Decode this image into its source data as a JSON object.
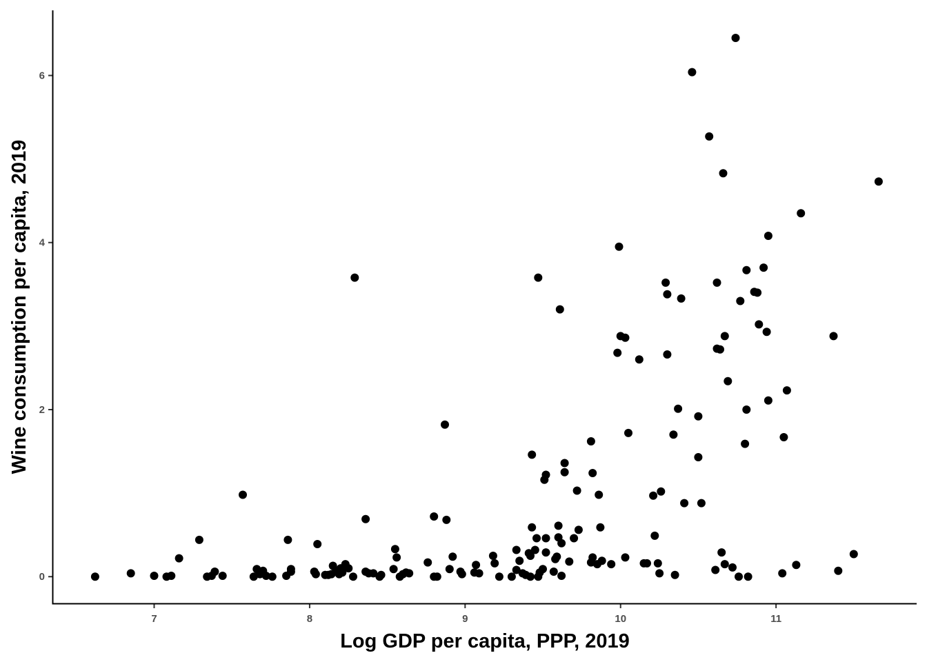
{
  "chart_data": {
    "type": "scatter",
    "title": "",
    "xlabel": "Log GDP per capita, PPP, 2019",
    "ylabel": "Wine consumption per capita, 2019",
    "xlim": [
      6.35,
      11.9
    ],
    "ylim": [
      -0.32,
      6.78
    ],
    "xticks": [
      7,
      8,
      9,
      10,
      11
    ],
    "yticks": [
      0,
      2,
      4,
      6
    ],
    "xtick_labels": [
      "7",
      "8",
      "9",
      "10",
      "11"
    ],
    "ytick_labels": [
      "0",
      "2",
      "4",
      "6"
    ],
    "grid": false,
    "legend": "none",
    "point_color": "#000000",
    "points": [
      [
        6.62,
        0.0
      ],
      [
        6.85,
        0.04
      ],
      [
        7.0,
        0.01
      ],
      [
        7.08,
        0.0
      ],
      [
        7.11,
        0.01
      ],
      [
        7.16,
        0.22
      ],
      [
        7.29,
        0.44
      ],
      [
        7.34,
        0.0
      ],
      [
        7.37,
        0.01
      ],
      [
        7.39,
        0.06
      ],
      [
        7.44,
        0.01
      ],
      [
        7.57,
        0.98
      ],
      [
        7.64,
        0.0
      ],
      [
        7.66,
        0.09
      ],
      [
        7.68,
        0.03
      ],
      [
        7.7,
        0.07
      ],
      [
        7.72,
        0.01
      ],
      [
        7.76,
        0.0
      ],
      [
        7.85,
        0.01
      ],
      [
        7.86,
        0.44
      ],
      [
        7.88,
        0.06
      ],
      [
        7.88,
        0.09
      ],
      [
        8.03,
        0.06
      ],
      [
        8.04,
        0.03
      ],
      [
        8.05,
        0.39
      ],
      [
        8.1,
        0.02
      ],
      [
        8.12,
        0.02
      ],
      [
        8.14,
        0.03
      ],
      [
        8.15,
        0.13
      ],
      [
        8.17,
        0.07
      ],
      [
        8.19,
        0.03
      ],
      [
        8.2,
        0.1
      ],
      [
        8.21,
        0.05
      ],
      [
        8.23,
        0.15
      ],
      [
        8.25,
        0.1
      ],
      [
        8.28,
        0.0
      ],
      [
        8.29,
        3.58
      ],
      [
        8.36,
        0.69
      ],
      [
        8.36,
        0.06
      ],
      [
        8.38,
        0.04
      ],
      [
        8.41,
        0.04
      ],
      [
        8.45,
        0.0
      ],
      [
        8.46,
        0.02
      ],
      [
        8.54,
        0.09
      ],
      [
        8.55,
        0.33
      ],
      [
        8.56,
        0.23
      ],
      [
        8.58,
        0.0
      ],
      [
        8.6,
        0.03
      ],
      [
        8.62,
        0.05
      ],
      [
        8.64,
        0.04
      ],
      [
        8.76,
        0.17
      ],
      [
        8.8,
        0.0
      ],
      [
        8.8,
        0.72
      ],
      [
        8.82,
        0.0
      ],
      [
        8.87,
        1.82
      ],
      [
        8.88,
        0.68
      ],
      [
        8.9,
        0.09
      ],
      [
        8.92,
        0.24
      ],
      [
        8.97,
        0.06
      ],
      [
        8.98,
        0.03
      ],
      [
        9.06,
        0.05
      ],
      [
        9.07,
        0.14
      ],
      [
        9.09,
        0.04
      ],
      [
        9.18,
        0.25
      ],
      [
        9.19,
        0.16
      ],
      [
        9.22,
        0.0
      ],
      [
        9.3,
        0.0
      ],
      [
        9.33,
        0.08
      ],
      [
        9.33,
        0.32
      ],
      [
        9.35,
        0.19
      ],
      [
        9.37,
        0.04
      ],
      [
        9.39,
        0.02
      ],
      [
        9.41,
        0.28
      ],
      [
        9.42,
        0.0
      ],
      [
        9.42,
        0.25
      ],
      [
        9.43,
        1.46
      ],
      [
        9.43,
        0.59
      ],
      [
        9.45,
        0.32
      ],
      [
        9.46,
        0.46
      ],
      [
        9.47,
        3.58
      ],
      [
        9.47,
        0.0
      ],
      [
        9.48,
        0.05
      ],
      [
        9.5,
        0.09
      ],
      [
        9.52,
        1.22
      ],
      [
        9.51,
        1.16
      ],
      [
        9.52,
        0.46
      ],
      [
        9.52,
        0.29
      ],
      [
        9.57,
        0.06
      ],
      [
        9.58,
        0.21
      ],
      [
        9.59,
        0.24
      ],
      [
        9.6,
        0.61
      ],
      [
        9.61,
        3.2
      ],
      [
        9.6,
        0.47
      ],
      [
        9.62,
        0.01
      ],
      [
        9.62,
        0.4
      ],
      [
        9.64,
        1.36
      ],
      [
        9.64,
        1.25
      ],
      [
        9.67,
        0.18
      ],
      [
        9.7,
        0.46
      ],
      [
        9.72,
        1.03
      ],
      [
        9.73,
        0.56
      ],
      [
        9.81,
        1.62
      ],
      [
        9.82,
        1.24
      ],
      [
        9.82,
        0.23
      ],
      [
        9.81,
        0.17
      ],
      [
        9.85,
        0.15
      ],
      [
        9.86,
        0.98
      ],
      [
        9.87,
        0.59
      ],
      [
        9.88,
        0.19
      ],
      [
        9.94,
        0.15
      ],
      [
        9.98,
        2.68
      ],
      [
        9.99,
        3.95
      ],
      [
        10.0,
        2.88
      ],
      [
        10.03,
        2.86
      ],
      [
        10.03,
        0.23
      ],
      [
        10.05,
        1.72
      ],
      [
        10.12,
        2.6
      ],
      [
        10.15,
        0.16
      ],
      [
        10.17,
        0.16
      ],
      [
        10.21,
        0.97
      ],
      [
        10.22,
        0.49
      ],
      [
        10.24,
        0.16
      ],
      [
        10.25,
        0.04
      ],
      [
        10.26,
        1.02
      ],
      [
        10.29,
        3.52
      ],
      [
        10.3,
        2.66
      ],
      [
        10.3,
        3.38
      ],
      [
        10.34,
        1.7
      ],
      [
        10.35,
        0.02
      ],
      [
        10.37,
        2.01
      ],
      [
        10.39,
        3.33
      ],
      [
        10.41,
        0.88
      ],
      [
        10.46,
        6.04
      ],
      [
        10.5,
        1.92
      ],
      [
        10.5,
        1.43
      ],
      [
        10.52,
        0.88
      ],
      [
        10.57,
        5.27
      ],
      [
        10.61,
        0.08
      ],
      [
        10.62,
        3.52
      ],
      [
        10.62,
        2.73
      ],
      [
        10.64,
        2.72
      ],
      [
        10.65,
        0.29
      ],
      [
        10.66,
        4.83
      ],
      [
        10.67,
        2.88
      ],
      [
        10.67,
        0.15
      ],
      [
        10.69,
        2.34
      ],
      [
        10.72,
        0.11
      ],
      [
        10.74,
        6.45
      ],
      [
        10.76,
        0.0
      ],
      [
        10.77,
        3.3
      ],
      [
        10.8,
        1.59
      ],
      [
        10.81,
        3.67
      ],
      [
        10.81,
        2.0
      ],
      [
        10.82,
        0.0
      ],
      [
        10.86,
        3.41
      ],
      [
        10.88,
        3.4
      ],
      [
        10.89,
        3.02
      ],
      [
        10.92,
        3.7
      ],
      [
        10.94,
        2.93
      ],
      [
        10.95,
        4.08
      ],
      [
        10.95,
        2.11
      ],
      [
        11.04,
        0.04
      ],
      [
        11.05,
        1.67
      ],
      [
        11.07,
        2.23
      ],
      [
        11.13,
        0.14
      ],
      [
        11.16,
        4.35
      ],
      [
        11.37,
        2.88
      ],
      [
        11.4,
        0.07
      ],
      [
        11.5,
        0.27
      ],
      [
        11.66,
        4.73
      ]
    ]
  }
}
